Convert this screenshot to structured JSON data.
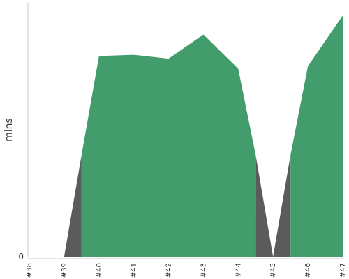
{
  "chart_data": {
    "type": "area",
    "title": "",
    "xlabel": "",
    "ylabel": "mins",
    "categories": [
      "#38",
      "#39",
      "#40",
      "#41",
      "#42",
      "#43",
      "#44",
      "#45",
      "#46",
      "#47"
    ],
    "y_tick_labels": [
      "0"
    ],
    "ylim": [
      0,
      100
    ],
    "grid": false,
    "legend": "none",
    "series": [
      {
        "color": "#5b5b5b",
        "segments": [
          {
            "x": [
              1,
              1.5
            ],
            "y": [
              0,
              40
            ]
          },
          {
            "x": [
              6.5,
              7
            ],
            "y": [
              40,
              0
            ]
          },
          {
            "x": [
              7,
              7.5
            ],
            "y": [
              0,
              40
            ]
          }
        ]
      },
      {
        "color": "#429c6c",
        "segments": [
          {
            "x": [
              1.5,
              2,
              3,
              4,
              5,
              6,
              6.5
            ],
            "y": [
              40,
              79,
              79.5,
              78,
              87.5,
              74,
              40
            ]
          },
          {
            "x": [
              7.5,
              8,
              9
            ],
            "y": [
              40,
              75,
              95
            ]
          }
        ]
      }
    ]
  }
}
